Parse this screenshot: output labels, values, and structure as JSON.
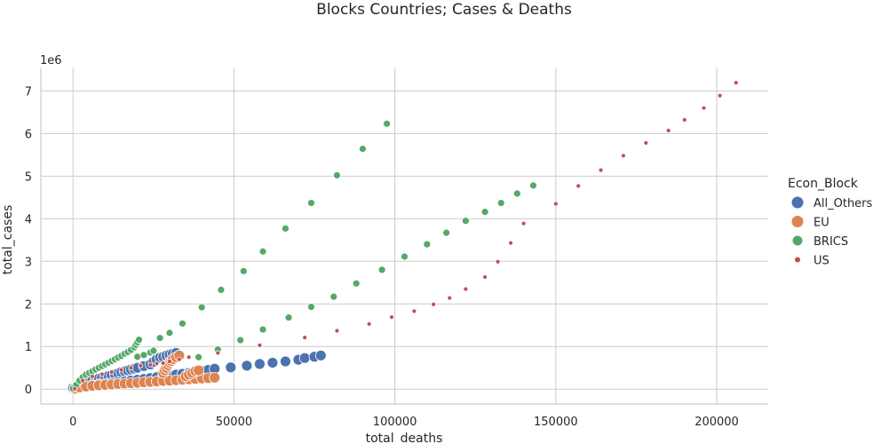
{
  "chart_data": {
    "type": "scatter",
    "title": "Blocks Countries; Cases & Deaths",
    "xlabel": "total_deaths",
    "ylabel": "total_cases",
    "y_offset_label": "1e6",
    "xlim": [
      -10000,
      216000
    ],
    "ylim": [
      -350000,
      7550000
    ],
    "x_ticks": [
      0,
      50000,
      100000,
      150000,
      200000
    ],
    "x_tick_labels": [
      "0",
      "50000",
      "100000",
      "150000",
      "200000"
    ],
    "y_ticks": [
      0,
      1000000,
      2000000,
      3000000,
      4000000,
      5000000,
      6000000,
      7000000
    ],
    "y_tick_labels": [
      "0",
      "1",
      "2",
      "3",
      "4",
      "5",
      "6",
      "7"
    ],
    "grid": true,
    "legend": {
      "title": "Econ_Block",
      "placement": "right",
      "entries": [
        "All_Others",
        "EU",
        "BRICS",
        "US"
      ]
    },
    "series": [
      {
        "name": "All_Others",
        "color": "#4c72b0",
        "marker_radius": 6,
        "points": [
          [
            0,
            20000
          ],
          [
            1000,
            60000
          ],
          [
            2000,
            90000
          ],
          [
            3000,
            120000
          ],
          [
            4000,
            150000
          ],
          [
            5000,
            170000
          ],
          [
            6000,
            200000
          ],
          [
            7000,
            220000
          ],
          [
            8000,
            250000
          ],
          [
            9000,
            270000
          ],
          [
            10000,
            290000
          ],
          [
            11000,
            310000
          ],
          [
            12000,
            330000
          ],
          [
            13000,
            350000
          ],
          [
            14000,
            370000
          ],
          [
            15000,
            400000
          ],
          [
            16000,
            420000
          ],
          [
            17000,
            440000
          ],
          [
            18000,
            460000
          ],
          [
            19000,
            480000
          ],
          [
            20000,
            500000
          ],
          [
            22000,
            540000
          ],
          [
            24000,
            580000
          ],
          [
            25000,
            640000
          ],
          [
            26000,
            700000
          ],
          [
            27000,
            740000
          ],
          [
            28000,
            760000
          ],
          [
            29000,
            790000
          ],
          [
            30000,
            810000
          ],
          [
            31000,
            830000
          ],
          [
            32000,
            850000
          ],
          [
            6000,
            90000
          ],
          [
            8000,
            110000
          ],
          [
            10000,
            130000
          ],
          [
            12000,
            140000
          ],
          [
            14000,
            160000
          ],
          [
            16000,
            180000
          ],
          [
            18000,
            200000
          ],
          [
            20000,
            220000
          ],
          [
            22000,
            240000
          ],
          [
            24000,
            260000
          ],
          [
            26000,
            280000
          ],
          [
            28000,
            300000
          ],
          [
            30000,
            320000
          ],
          [
            32000,
            340000
          ],
          [
            34000,
            360000
          ],
          [
            36000,
            380000
          ],
          [
            38000,
            400000
          ],
          [
            40000,
            430000
          ],
          [
            42000,
            450000
          ],
          [
            44000,
            480000
          ],
          [
            49000,
            510000
          ],
          [
            54000,
            550000
          ],
          [
            58000,
            590000
          ],
          [
            62000,
            620000
          ],
          [
            66000,
            650000
          ],
          [
            70000,
            690000
          ],
          [
            72000,
            730000
          ],
          [
            75000,
            760000
          ],
          [
            77000,
            790000
          ]
        ]
      },
      {
        "name": "EU",
        "color": "#dd8452",
        "marker_radius": 6,
        "points": [
          [
            500,
            10000
          ],
          [
            2000,
            40000
          ],
          [
            4000,
            60000
          ],
          [
            6000,
            80000
          ],
          [
            8000,
            90000
          ],
          [
            10000,
            100000
          ],
          [
            12000,
            110000
          ],
          [
            14000,
            120000
          ],
          [
            16000,
            130000
          ],
          [
            18000,
            140000
          ],
          [
            20000,
            150000
          ],
          [
            22000,
            160000
          ],
          [
            24000,
            170000
          ],
          [
            26000,
            180000
          ],
          [
            28000,
            190000
          ],
          [
            30000,
            200000
          ],
          [
            32000,
            210000
          ],
          [
            34000,
            220000
          ],
          [
            36000,
            230000
          ],
          [
            38000,
            240000
          ],
          [
            40000,
            250000
          ],
          [
            42000,
            260000
          ],
          [
            44000,
            270000
          ],
          [
            28000,
            380000
          ],
          [
            28500,
            440000
          ],
          [
            29000,
            500000
          ],
          [
            29500,
            560000
          ],
          [
            30000,
            620000
          ],
          [
            30500,
            660000
          ],
          [
            31000,
            700000
          ],
          [
            32000,
            750000
          ],
          [
            33000,
            790000
          ],
          [
            35000,
            300000
          ],
          [
            36000,
            340000
          ],
          [
            37000,
            380000
          ],
          [
            38000,
            420000
          ],
          [
            39000,
            440000
          ]
        ]
      },
      {
        "name": "BRICS",
        "color": "#55a868",
        "marker_radius": 4,
        "points": [
          [
            0,
            10000
          ],
          [
            1000,
            100000
          ],
          [
            2000,
            200000
          ],
          [
            3000,
            280000
          ],
          [
            4000,
            340000
          ],
          [
            5000,
            380000
          ],
          [
            6000,
            420000
          ],
          [
            7000,
            460000
          ],
          [
            8000,
            500000
          ],
          [
            9000,
            540000
          ],
          [
            10000,
            580000
          ],
          [
            11000,
            620000
          ],
          [
            12000,
            660000
          ],
          [
            13000,
            700000
          ],
          [
            14000,
            740000
          ],
          [
            15000,
            780000
          ],
          [
            16000,
            830000
          ],
          [
            17000,
            870000
          ],
          [
            18000,
            920000
          ],
          [
            19000,
            980000
          ],
          [
            19500,
            1040000
          ],
          [
            20000,
            1100000
          ],
          [
            20500,
            1160000
          ],
          [
            20000,
            760000
          ],
          [
            22000,
            800000
          ],
          [
            24000,
            860000
          ],
          [
            25000,
            900000
          ],
          [
            27000,
            1200000
          ],
          [
            30000,
            1320000
          ],
          [
            34000,
            1540000
          ],
          [
            40000,
            1920000
          ],
          [
            46000,
            2330000
          ],
          [
            53000,
            2770000
          ],
          [
            59000,
            3230000
          ],
          [
            66000,
            3770000
          ],
          [
            74000,
            4370000
          ],
          [
            82000,
            5020000
          ],
          [
            90000,
            5640000
          ],
          [
            97500,
            6230000
          ],
          [
            39000,
            750000
          ],
          [
            45000,
            930000
          ],
          [
            52000,
            1150000
          ],
          [
            59000,
            1400000
          ],
          [
            67000,
            1680000
          ],
          [
            74000,
            1930000
          ],
          [
            81000,
            2170000
          ],
          [
            88000,
            2480000
          ],
          [
            96000,
            2800000
          ],
          [
            103000,
            3110000
          ],
          [
            110000,
            3400000
          ],
          [
            116000,
            3670000
          ],
          [
            122000,
            3950000
          ],
          [
            128000,
            4160000
          ],
          [
            133000,
            4370000
          ],
          [
            138000,
            4590000
          ],
          [
            143000,
            4780000
          ]
        ]
      },
      {
        "name": "US",
        "color": "#c44e52",
        "marker_radius": 2.5,
        "points": [
          [
            500,
            10000
          ],
          [
            3000,
            200000
          ],
          [
            6000,
            300000
          ],
          [
            9000,
            350000
          ],
          [
            12000,
            400000
          ],
          [
            15000,
            450000
          ],
          [
            18000,
            500000
          ],
          [
            21000,
            550000
          ],
          [
            24000,
            570000
          ],
          [
            26000,
            600000
          ],
          [
            28000,
            610000
          ],
          [
            30000,
            650000
          ],
          [
            33000,
            700000
          ],
          [
            36000,
            750000
          ],
          [
            45000,
            850000
          ],
          [
            58000,
            1030000
          ],
          [
            72000,
            1210000
          ],
          [
            82000,
            1370000
          ],
          [
            92000,
            1530000
          ],
          [
            99000,
            1690000
          ],
          [
            106000,
            1830000
          ],
          [
            112000,
            1990000
          ],
          [
            117000,
            2140000
          ],
          [
            122000,
            2350000
          ],
          [
            128000,
            2630000
          ],
          [
            132000,
            2990000
          ],
          [
            136000,
            3430000
          ],
          [
            140000,
            3890000
          ],
          [
            150000,
            4350000
          ],
          [
            157000,
            4770000
          ],
          [
            164000,
            5140000
          ],
          [
            171000,
            5480000
          ],
          [
            178000,
            5780000
          ],
          [
            185000,
            6070000
          ],
          [
            190000,
            6320000
          ],
          [
            196000,
            6600000
          ],
          [
            201000,
            6890000
          ],
          [
            206000,
            7190000
          ]
        ]
      }
    ]
  }
}
